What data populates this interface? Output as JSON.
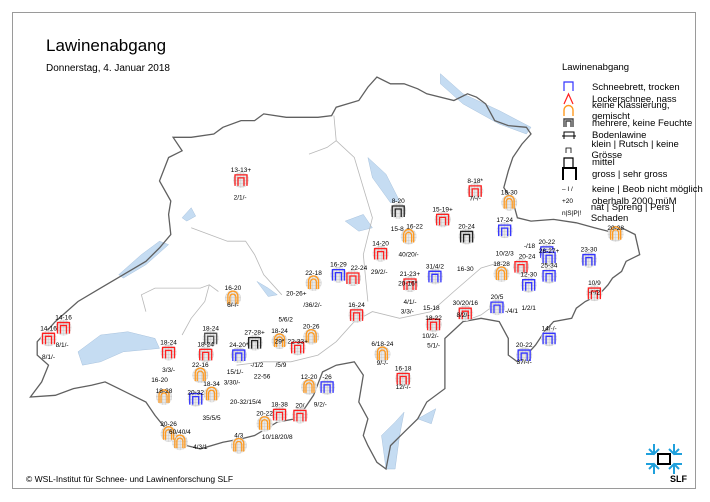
{
  "header": {
    "title": "Lawinenabgang",
    "date": "Donnerstag, 4. Januar 2018"
  },
  "legend": {
    "title": "Lawinenabgang",
    "items": [
      {
        "label": "Schneebrett, trocken",
        "icon": "bracket-blue",
        "color": "#3333ff"
      },
      {
        "label": "Lockerschnee, nass",
        "icon": "caret-red",
        "color": "#ff2020"
      },
      {
        "label": "keine Klassierung, gemischt",
        "icon": "arch-orange",
        "color": "#ff9a20"
      },
      {
        "label": "mehrere, keine Feuchte",
        "icon": "multi-gray",
        "color": "#555555"
      },
      {
        "label": "Bodenlawine",
        "icon": "ground-line",
        "color": "#000000"
      },
      {
        "label": "klein | Rutsch | keine Grösse",
        "icon": "size-small",
        "color": "#000000"
      },
      {
        "label": "mittel",
        "icon": "size-medium",
        "color": "#000000"
      },
      {
        "label": "gross | sehr gross",
        "icon": "size-large",
        "color": "#000000"
      },
      {
        "label": "keine | Beob nicht möglich",
        "icon": "dash-slash",
        "symbol_text": "–  I  /"
      },
      {
        "label": "oberhalb 2000 müM",
        "icon": "plus-20",
        "symbol_text": "+20"
      },
      {
        "label": "nat | Spreng | Pers | Schaden",
        "icon": "nspi",
        "symbol_text": "n|S|P|!"
      }
    ]
  },
  "map": {
    "colors": {
      "border": "#606060",
      "canton": "#b8b8b8",
      "lake": "#c5dcf2",
      "blue": "#3333ff",
      "red": "#ff2020",
      "orange": "#ff9a20",
      "black": "#222222",
      "gray": "#555555"
    },
    "stations": [
      {
        "label": "13-13+",
        "type": "red"
      },
      {
        "label": "2/1/-",
        "type": "text"
      },
      {
        "label": "14-16",
        "type": "red"
      },
      {
        "label": "14-16",
        "type": "red"
      },
      {
        "label": "8/1/-",
        "type": "text"
      },
      {
        "label": "8/1/-",
        "type": "text"
      },
      {
        "label": "18-24",
        "type": "red"
      },
      {
        "label": "3/3/-",
        "type": "text"
      },
      {
        "label": "16-20",
        "type": "orange"
      },
      {
        "label": "6/-/-",
        "type": "text"
      },
      {
        "label": "18-24",
        "type": "gray"
      },
      {
        "label": "18-24",
        "type": "red"
      },
      {
        "label": "22-16",
        "type": "orange"
      },
      {
        "label": "24-20*",
        "type": "blue"
      },
      {
        "label": "15/1/-",
        "type": "text"
      },
      {
        "label": "3/30/-",
        "type": "text"
      },
      {
        "label": "27-28+",
        "type": "black"
      },
      {
        "label": "18-24",
        "type": "orange"
      },
      {
        "label": "29*",
        "type": "text"
      },
      {
        "label": "22-33+",
        "type": "red"
      },
      {
        "label": "20-26",
        "type": "orange"
      },
      {
        "label": "5/6/2",
        "type": "text"
      },
      {
        "label": "22-18",
        "type": "orange"
      },
      {
        "label": "20-26+",
        "type": "text"
      },
      {
        "label": "/36/2/-",
        "type": "text"
      },
      {
        "label": "16-29",
        "type": "blue"
      },
      {
        "label": "22-24",
        "type": "red"
      },
      {
        "label": "16-24",
        "type": "red"
      },
      {
        "label": "-/1/2",
        "type": "text"
      },
      {
        "label": "/5/9",
        "type": "text"
      },
      {
        "label": "22-56",
        "type": "text"
      },
      {
        "label": "18-34",
        "type": "orange"
      },
      {
        "label": "16-20",
        "type": "text"
      },
      {
        "label": "18-28",
        "type": "orange"
      },
      {
        "label": "20-32",
        "type": "blue"
      },
      {
        "label": "20-32/15/4",
        "type": "text"
      },
      {
        "label": "18-38",
        "type": "red"
      },
      {
        "label": "20-22",
        "type": "orange"
      },
      {
        "label": "10/18/20/8",
        "type": "text"
      },
      {
        "label": "60/40/4",
        "type": "orange"
      },
      {
        "label": "4/3/1",
        "type": "text"
      },
      {
        "label": "35/5/5",
        "type": "text"
      },
      {
        "label": "4/3",
        "type": "orange"
      },
      {
        "label": "20-26",
        "type": "orange"
      },
      {
        "label": "12-20",
        "type": "orange"
      },
      {
        "label": "-26",
        "type": "blue"
      },
      {
        "label": "20/",
        "type": "red"
      },
      {
        "label": "9/2/-",
        "type": "text"
      },
      {
        "label": "8-20",
        "type": "black"
      },
      {
        "label": "15-19+",
        "type": "red"
      },
      {
        "label": "8-18*",
        "type": "red"
      },
      {
        "label": "7/-/-",
        "type": "text"
      },
      {
        "label": "18-30",
        "type": "orange"
      },
      {
        "label": "15-8",
        "type": "text"
      },
      {
        "label": "16-22",
        "type": "orange"
      },
      {
        "label": "40/20/-",
        "type": "text"
      },
      {
        "label": "14-20",
        "type": "red"
      },
      {
        "label": "29/2/-",
        "type": "text"
      },
      {
        "label": "20-24",
        "type": "black"
      },
      {
        "label": "31/4/2",
        "type": "blue"
      },
      {
        "label": "16-30",
        "type": "text"
      },
      {
        "label": "21-23+",
        "type": "red"
      },
      {
        "label": "20-16*",
        "type": "text"
      },
      {
        "label": "4/1/-",
        "type": "text"
      },
      {
        "label": "3/3/-",
        "type": "text"
      },
      {
        "label": "15-18",
        "type": "text"
      },
      {
        "label": "18-22",
        "type": "red"
      },
      {
        "label": "10/2/-",
        "type": "text"
      },
      {
        "label": "5/1/-",
        "type": "text"
      },
      {
        "label": "17-24",
        "type": "blue"
      },
      {
        "label": "10/2/3",
        "type": "text"
      },
      {
        "label": "18-28",
        "type": "orange"
      },
      {
        "label": "20-24",
        "type": "red"
      },
      {
        "label": "12-30",
        "type": "blue"
      },
      {
        "label": "20/5",
        "type": "blue"
      },
      {
        "label": "-/4/1",
        "type": "text"
      },
      {
        "label": "1/2/1",
        "type": "text"
      },
      {
        "label": "20-22",
        "type": "blue"
      },
      {
        "label": "-/18",
        "type": "text"
      },
      {
        "label": "26-27+",
        "type": "blue"
      },
      {
        "label": "25-34",
        "type": "blue"
      },
      {
        "label": "23-30",
        "type": "blue"
      },
      {
        "label": "20-28",
        "type": "orange"
      },
      {
        "label": "10/9",
        "type": "red"
      },
      {
        "label": "-/-/2",
        "type": "text"
      },
      {
        "label": "14/-/-",
        "type": "blue"
      },
      {
        "label": "20-22",
        "type": "blue"
      },
      {
        "label": "37/-/-",
        "type": "text"
      },
      {
        "label": "6/18-24",
        "type": "orange"
      },
      {
        "label": "9/-/-",
        "type": "text"
      },
      {
        "label": "16-18",
        "type": "red"
      },
      {
        "label": "12/-/-",
        "type": "text"
      },
      {
        "label": "30/20/16",
        "type": "red"
      },
      {
        "label": "8/2/-",
        "type": "text"
      }
    ]
  },
  "footer": {
    "copyright": "© WSL-Institut für Schnee- und Lawinenforschung SLF",
    "logo_text": "SLF"
  }
}
